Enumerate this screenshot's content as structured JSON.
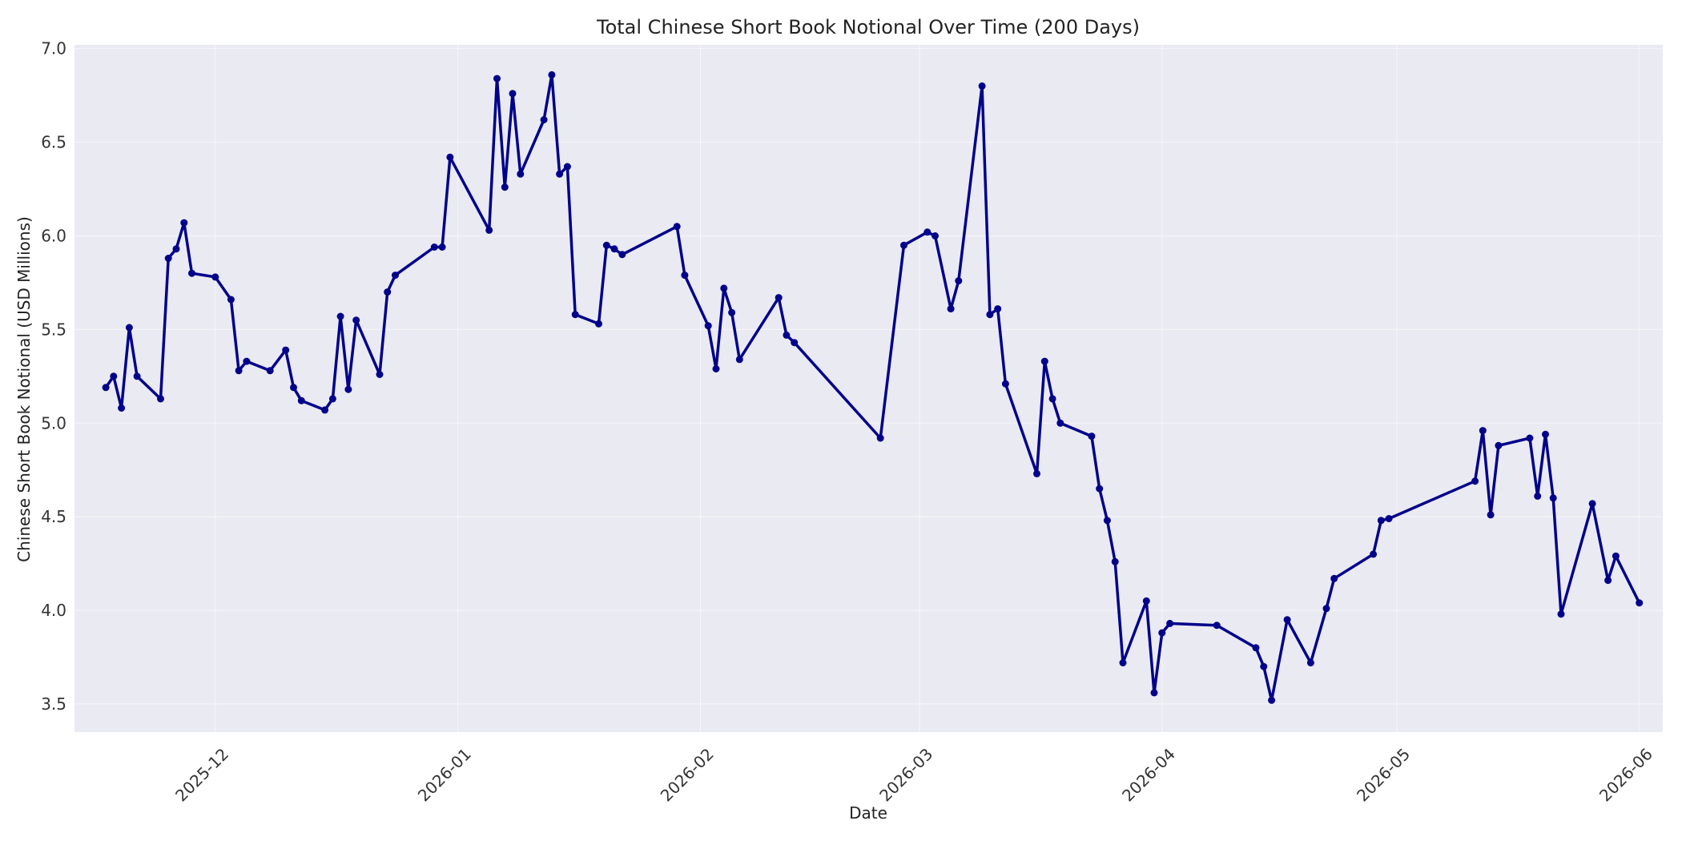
{
  "chart_data": {
    "type": "line",
    "title": "Total Chinese Short Book Notional Over Time (200 Days)",
    "xlabel": "Date",
    "ylabel": "Chinese Short Book Notional (USD Millions)",
    "xlim": [
      "2025-11-13",
      "2026-06-04"
    ],
    "ylim": [
      3.35,
      7.02
    ],
    "x_ticks": [
      "2025-12-01",
      "2026-01-01",
      "2026-02-01",
      "2026-03-01",
      "2026-04-01",
      "2026-05-01",
      "2026-06-01"
    ],
    "x_tick_labels": [
      "2025-12",
      "2026-01",
      "2026-02",
      "2026-03",
      "2026-04",
      "2026-05",
      "2026-06"
    ],
    "y_ticks": [
      3.5,
      4.0,
      4.5,
      5.0,
      5.5,
      6.0,
      6.5,
      7.0
    ],
    "y_tick_labels": [
      "3.5",
      "4.0",
      "4.5",
      "5.0",
      "5.5",
      "6.0",
      "6.5",
      "7.0"
    ],
    "grid": true,
    "colors": {
      "line": "#00008b",
      "background": "#eaeaf2",
      "grid": "#ffffff"
    },
    "series": [
      {
        "x": [
          "2025-11-17",
          "2025-11-18",
          "2025-11-19",
          "2025-11-20",
          "2025-11-21",
          "2025-11-24",
          "2025-11-25",
          "2025-11-26",
          "2025-11-27",
          "2025-11-28",
          "2025-12-01",
          "2025-12-03",
          "2025-12-04",
          "2025-12-05",
          "2025-12-08",
          "2025-12-10",
          "2025-12-11",
          "2025-12-12",
          "2025-12-15",
          "2025-12-16",
          "2025-12-17",
          "2025-12-18",
          "2025-12-19",
          "2025-12-22",
          "2025-12-23",
          "2025-12-24",
          "2025-12-29",
          "2025-12-30",
          "2025-12-31",
          "2026-01-05",
          "2026-01-06",
          "2026-01-07",
          "2026-01-08",
          "2026-01-09",
          "2026-01-12",
          "2026-01-13",
          "2026-01-14",
          "2026-01-15",
          "2026-01-16",
          "2026-01-19",
          "2026-01-20",
          "2026-01-21",
          "2026-01-22",
          "2026-01-29",
          "2026-01-30",
          "2026-02-02",
          "2026-02-03",
          "2026-02-04",
          "2026-02-05",
          "2026-02-06",
          "2026-02-11",
          "2026-02-12",
          "2026-02-13",
          "2026-02-24",
          "2026-02-27",
          "2026-03-02",
          "2026-03-03",
          "2026-03-05",
          "2026-03-06",
          "2026-03-09",
          "2026-03-10",
          "2026-03-11",
          "2026-03-12",
          "2026-03-16",
          "2026-03-17",
          "2026-03-18",
          "2026-03-19",
          "2026-03-23",
          "2026-03-24",
          "2026-03-25",
          "2026-03-26",
          "2026-03-27",
          "2026-03-30",
          "2026-03-31",
          "2026-04-01",
          "2026-04-02",
          "2026-04-08",
          "2026-04-13",
          "2026-04-14",
          "2026-04-15",
          "2026-04-17",
          "2026-04-20",
          "2026-04-22",
          "2026-04-23",
          "2026-04-28",
          "2026-04-29",
          "2026-04-30",
          "2026-05-11",
          "2026-05-12",
          "2026-05-13",
          "2026-05-14",
          "2026-05-18",
          "2026-05-19",
          "2026-05-20",
          "2026-05-21",
          "2026-05-22",
          "2026-05-26",
          "2026-05-28",
          "2026-05-29",
          "2026-06-01"
        ],
        "values": [
          5.19,
          5.25,
          5.08,
          5.51,
          5.25,
          5.13,
          5.88,
          5.93,
          6.07,
          5.8,
          5.78,
          5.66,
          5.28,
          5.33,
          5.28,
          5.39,
          5.19,
          5.12,
          5.07,
          5.13,
          5.57,
          5.18,
          5.55,
          5.26,
          5.7,
          5.79,
          5.94,
          5.94,
          6.42,
          6.03,
          6.84,
          6.26,
          6.76,
          6.33,
          6.62,
          6.86,
          6.33,
          6.37,
          5.58,
          5.53,
          5.95,
          5.93,
          5.9,
          6.05,
          5.79,
          5.52,
          5.29,
          5.72,
          5.59,
          5.34,
          5.67,
          5.47,
          5.43,
          4.92,
          5.95,
          6.02,
          6.0,
          5.61,
          5.76,
          6.8,
          5.58,
          5.61,
          5.21,
          4.73,
          5.33,
          5.13,
          5.0,
          4.93,
          4.65,
          4.48,
          4.26,
          3.72,
          4.05,
          3.56,
          3.88,
          3.93,
          3.92,
          3.8,
          3.7,
          3.52,
          3.95,
          3.72,
          4.01,
          4.17,
          4.3,
          4.48,
          4.49,
          4.69,
          4.96,
          4.51,
          4.88,
          4.92,
          4.61,
          4.94,
          4.6,
          3.98,
          4.57,
          4.16,
          4.29,
          4.04
        ]
      }
    ]
  }
}
